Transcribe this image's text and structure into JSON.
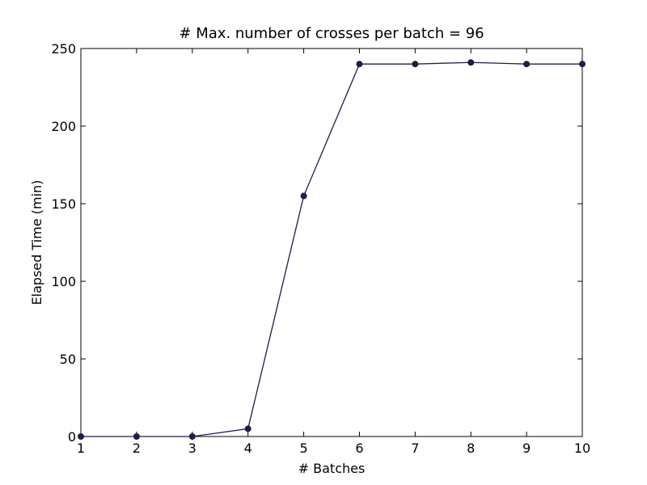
{
  "chart_data": {
    "type": "line",
    "title": "# Max. number of crosses per batch = 96",
    "xlabel": "# Batches",
    "ylabel": "Elapsed Time (min)",
    "x": [
      1,
      2,
      3,
      4,
      5,
      6,
      7,
      8,
      9,
      10
    ],
    "series": [
      {
        "name": "elapsed",
        "color": "#1b1f48",
        "values": [
          0,
          0,
          0,
          5,
          155,
          240,
          240,
          241,
          240,
          240
        ]
      }
    ],
    "xlim": [
      1,
      10
    ],
    "xticks": [
      1,
      2,
      3,
      4,
      5,
      6,
      7,
      8,
      9,
      10
    ],
    "ylim": [
      0,
      250
    ],
    "yticks": [
      0,
      50,
      100,
      150,
      200,
      250
    ],
    "grid": false
  }
}
